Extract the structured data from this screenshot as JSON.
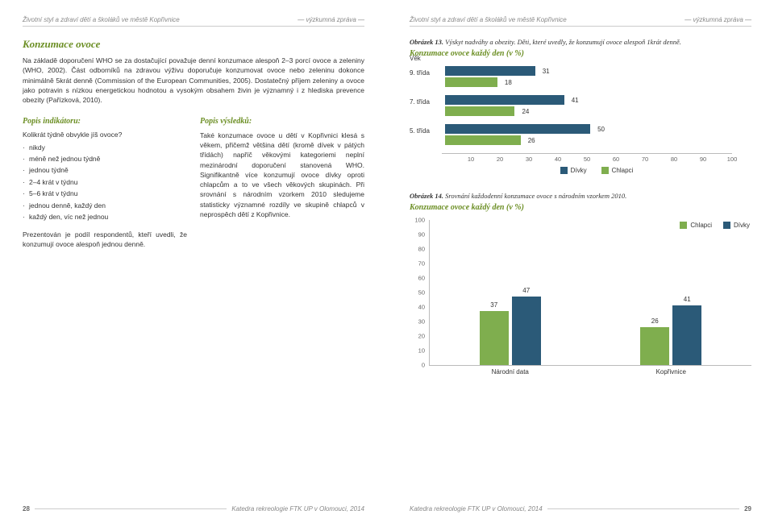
{
  "colors": {
    "girls": "#2b5a78",
    "boys": "#7fae4e",
    "accent": "#6b8e23",
    "grid": "#bbbbbb"
  },
  "header": {
    "title": "Životní styl a zdraví dětí a školáků ve městě Kopřivnice",
    "note": "— výzkumná zpráva —"
  },
  "left": {
    "section_title": "Konzumace ovoce",
    "intro": "Na základě doporučení WHO se za dostačující považuje denní konzumace alespoň 2–3 porcí ovoce a zeleniny (WHO, 2002). Část odborníků na zdravou výživu doporučuje konzumovat ovoce nebo zeleninu dokonce minimálně 5krát denně (Commission of the European Communities, 2005). Dostatečný příjem zeleniny a ovoce jako potravin s nízkou energetickou hodnotou a vysokým obsahem živin je významný i z hlediska prevence obezity (Pařízková, 2010).",
    "indicator_h": "Popis indikátoru:",
    "indicator_q": "Kolikrát týdně obvykle jíš ovoce?",
    "options": [
      "nikdy",
      "méně než jednou týdně",
      "jednou týdně",
      "2–4 krát v týdnu",
      "5–6 krát v týdnu",
      "jednou denně, každý den",
      "každý den, víc než jednou"
    ],
    "indicator_note": "Prezentován je podíl respondentů, kteří uvedli, že konzumují ovoce alespoň jednou denně.",
    "results_h": "Popis výsledků:",
    "results_text": "Také konzumace ovoce u dětí v Kopřivnici klesá s věkem, přičemž většina dětí (kromě dívek v pátých třídách) napříč věkovými kategoriemi neplní mezinárodní doporučení stanovená WHO. Signifikantně více konzumují ovoce dívky oproti chlapcům a to ve všech věkových skupinách. Při srovnání s národním vzorkem 2010 sledujeme statisticky významné rozdíly ve skupině chlapců v neprospěch dětí z Kopřivnice."
  },
  "right": {
    "fig13_label": "Obrázek 13.",
    "fig13_caption": "Výskyt nadváhy a obezity. Děti, které uvedly, že konzumují ovoce alespoň 1krát denně.",
    "fig13_title": "Konzumace ovoce každý den (v %)",
    "fig13": {
      "ylabel": "Věk",
      "categories": [
        "9. třída",
        "7. třída",
        "5. třída"
      ],
      "series": [
        {
          "name": "Dívky",
          "color_key": "girls",
          "values": [
            31,
            41,
            50
          ]
        },
        {
          "name": "Chlapci",
          "color_key": "boys",
          "values": [
            18,
            24,
            26
          ]
        }
      ],
      "xmax": 100,
      "xticks": [
        10,
        20,
        30,
        40,
        50,
        60,
        70,
        80,
        90,
        100
      ],
      "legend": [
        {
          "label": "Dívky",
          "color_key": "girls"
        },
        {
          "label": "Chlapci",
          "color_key": "boys"
        }
      ]
    },
    "fig14_label": "Obrázek 14.",
    "fig14_caption": "Srovnání každodenní konzumace ovoce s národním vzorkem 2010.",
    "fig14_title": "Konzumace ovoce každý den (v %)",
    "fig14": {
      "ymax": 100,
      "ytick_step": 10,
      "groups": [
        "Národní data",
        "Kopřivnice"
      ],
      "series": [
        {
          "name": "Chlapci",
          "color_key": "boys",
          "values": [
            37,
            26
          ]
        },
        {
          "name": "Dívky",
          "color_key": "girls",
          "values": [
            47,
            41
          ]
        }
      ],
      "legend": [
        {
          "label": "Chlapci",
          "color_key": "boys"
        },
        {
          "label": "Dívky",
          "color_key": "girls"
        }
      ]
    }
  },
  "footer": {
    "source": "Katedra rekreologie FTK UP v Olomouci, 2014",
    "page_left": "28",
    "page_right": "29"
  }
}
